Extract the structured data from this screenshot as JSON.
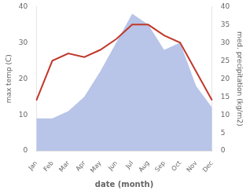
{
  "chart_data": {
    "type": "line",
    "categories": [
      "Jan",
      "Feb",
      "Mar",
      "Apr",
      "May",
      "Jun",
      "Jul",
      "Aug",
      "Sep",
      "Oct",
      "Nov",
      "Dec"
    ],
    "series": [
      {
        "type": "area",
        "color": "#b8c4e8",
        "axis": "y2",
        "values": [
          9,
          9,
          11,
          15,
          22,
          30,
          38,
          35,
          28,
          30,
          18,
          12
        ]
      },
      {
        "type": "line",
        "color": "#c0392b",
        "values": [
          14,
          25,
          27,
          26,
          28,
          31,
          35,
          35,
          32,
          30,
          22,
          14
        ]
      }
    ],
    "xlabel": "date (month)",
    "ylabel": "max temp (C)",
    "y2label": "med. precipitation (kg/m2)",
    "ylim": [
      0,
      40
    ],
    "yticks": [
      0,
      10,
      20,
      30,
      40
    ],
    "y2lim": [
      0,
      40
    ],
    "y2ticks": [
      0,
      5,
      10,
      15,
      20,
      25,
      30,
      35,
      40
    ],
    "grid": false
  }
}
